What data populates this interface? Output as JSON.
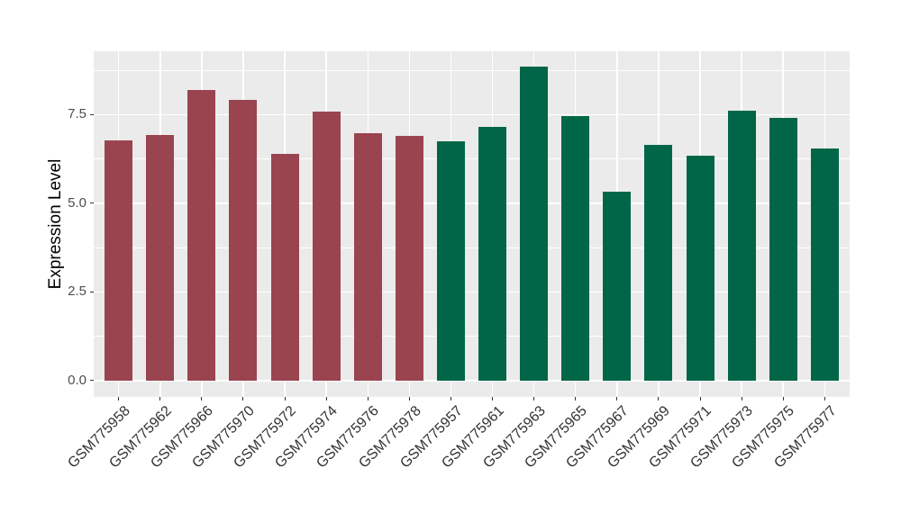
{
  "chart_data": {
    "type": "bar",
    "title": "",
    "xlabel": "",
    "ylabel": "Expression Level",
    "legend_position": "none",
    "grid": true,
    "ylim": [
      -0.46,
      9.29
    ],
    "ytick_values": [
      0,
      2.5,
      5,
      7.5
    ],
    "ytick_labels": [
      "0.0",
      "2.5",
      "5.0",
      "7.5"
    ],
    "ytick_minor_values": [
      1.25,
      3.75,
      6.25,
      8.75
    ],
    "categories": [
      "GSM775958",
      "GSM775962",
      "GSM775966",
      "GSM775970",
      "GSM775972",
      "GSM775974",
      "GSM775976",
      "GSM775978",
      "GSM775957",
      "GSM775961",
      "GSM775963",
      "GSM775965",
      "GSM775967",
      "GSM775969",
      "GSM775971",
      "GSM775973",
      "GSM775975",
      "GSM775977"
    ],
    "values": [
      6.77,
      6.92,
      8.2,
      7.93,
      6.4,
      7.6,
      6.97,
      6.91,
      6.76,
      7.15,
      8.86,
      7.46,
      5.34,
      6.64,
      6.34,
      7.62,
      7.42,
      6.56
    ],
    "groups": [
      "group-a",
      "group-a",
      "group-a",
      "group-a",
      "group-a",
      "group-a",
      "group-a",
      "group-a",
      "group-b",
      "group-b",
      "group-b",
      "group-b",
      "group-b",
      "group-b",
      "group-b",
      "group-b",
      "group-b",
      "group-b"
    ],
    "group_colors": {
      "group-a": "#9A4450",
      "group-b": "#006647"
    },
    "colors": {
      "panel_background": "#EBEBEB",
      "gridline": "#FFFFFF",
      "ytick_text": "#4D4D4D",
      "xtick_text": "#333333",
      "axis_title_text": "#000000",
      "tick_mark": "#333333",
      "figure_background": "#FFFFFF"
    }
  }
}
